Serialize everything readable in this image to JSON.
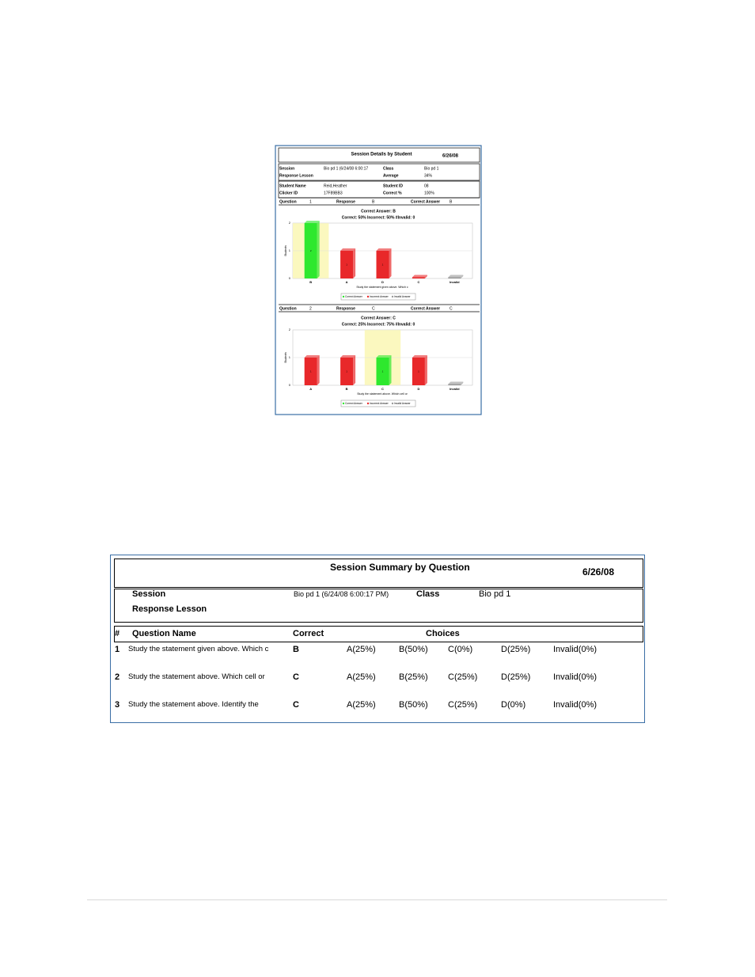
{
  "report_details": {
    "title": "Session Details by Student",
    "date": "6/26/08",
    "session_label": "Session",
    "session": "Bio pd 1 (6/24/08 6:00:17",
    "class_label": "Class",
    "class": "Bio pd 1",
    "lesson_label": "Response Lesson",
    "average_label": "Average",
    "average": "34%",
    "student_name_label": "Student Name",
    "student_name": "Reid,Heather",
    "student_id_label": "Student ID",
    "student_id": "08",
    "clicker_label": "Clicker ID",
    "clicker": "17F89BB3",
    "correct_label": "Correct   %",
    "correct": "100%",
    "questions": [
      {
        "question_label": "Question",
        "number": 1,
        "response_label": "Response",
        "response": "B",
        "answer_label": "Correct Answer",
        "answer": "B",
        "chart": {
          "type": "bar",
          "title": "Correct Answer: B",
          "subtitle": "Correct: 50%  Incorrect: 50%  #Invalid: 0",
          "y_label": "Students",
          "x_label": "Study the statement given above. Which c",
          "categories": [
            "B",
            "A",
            "D",
            "C",
            "Invalid"
          ],
          "values": [
            2,
            1,
            1,
            0,
            0
          ],
          "colors": [
            "#2ee82e",
            "#e8282a",
            "#e8282a",
            "#e8282a",
            "#9a9a9a"
          ],
          "ylim": [
            0,
            2
          ],
          "yticks": [
            0,
            1,
            2
          ],
          "legend": [
            {
              "name": "Correct Answer",
              "color": "#2ee82e"
            },
            {
              "name": "Incorrect Answer",
              "color": "#e8282a"
            },
            {
              "name": "Invalid Answer",
              "color": "#9a9a9a"
            }
          ]
        }
      },
      {
        "question_label": "Question",
        "number": 2,
        "response_label": "Response",
        "response": "C",
        "answer_label": "Correct Answer",
        "answer": "C",
        "chart": {
          "type": "bar",
          "title": "Correct Answer: C",
          "subtitle": "Correct: 25%  Incorrect: 75%  #Invalid: 0",
          "y_label": "Students",
          "x_label": "Study the statement above. Which cell or",
          "categories": [
            "A",
            "B",
            "C",
            "D",
            "Invalid"
          ],
          "values": [
            1,
            1,
            1,
            1,
            0
          ],
          "colors": [
            "#e8282a",
            "#e8282a",
            "#2ee82e",
            "#e8282a",
            "#9a9a9a"
          ],
          "ylim": [
            0,
            2
          ],
          "yticks": [
            0,
            1,
            2
          ],
          "legend": [
            {
              "name": "Correct Answer",
              "color": "#2ee82e"
            },
            {
              "name": "Incorrect Answer",
              "color": "#e8282a"
            },
            {
              "name": "Invalid Answer",
              "color": "#9a9a9a"
            }
          ]
        }
      }
    ]
  },
  "report_summary": {
    "title": "Session Summary by Question",
    "date": "6/26/08",
    "session_label": "Session",
    "session": "Bio pd 1 (6/24/08 6:00:17 PM)",
    "class_label": "Class",
    "class": "Bio pd 1",
    "lesson_label": "Response Lesson",
    "columns": [
      "#",
      "Question Name",
      "Correct",
      "Choices"
    ],
    "rows": [
      [
        1,
        "Study the statement given above. Which c",
        "B",
        "A(25%)",
        "B(50%)",
        "C(0%)",
        "D(25%)",
        "Invalid(0%)"
      ],
      [
        2,
        "Study the statement above. Which cell or",
        "C",
        "A(25%)",
        "B(25%)",
        "C(25%)",
        "D(25%)",
        "Invalid(0%)"
      ],
      [
        3,
        "Study the statement above. Identify the",
        "C",
        "A(25%)",
        "B(50%)",
        "C(25%)",
        "D(0%)",
        "Invalid(0%)"
      ]
    ]
  }
}
